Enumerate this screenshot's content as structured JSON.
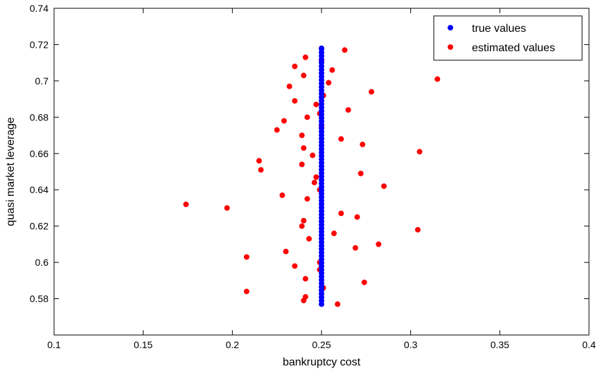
{
  "chart_data": {
    "type": "scatter",
    "xlabel": "bankruptcy cost",
    "ylabel": "quasi market leverage",
    "xlim": [
      0.1,
      0.4
    ],
    "ylim": [
      0.56,
      0.74
    ],
    "xticks": [
      "0.1",
      "0.15",
      "0.2",
      "0.25",
      "0.3",
      "0.35",
      "0.4"
    ],
    "yticks": [
      "0.58",
      "0.6",
      "0.62",
      "0.64",
      "0.66",
      "0.68",
      "0.7",
      "0.72",
      "0.74"
    ],
    "grid": false,
    "legend_position": "top-right",
    "series": [
      {
        "name": "true values",
        "color": "#0000ff",
        "x": [
          0.25,
          0.25,
          0.25,
          0.25,
          0.25,
          0.25,
          0.25,
          0.25,
          0.25,
          0.25,
          0.25,
          0.25,
          0.25,
          0.25,
          0.25,
          0.25,
          0.25,
          0.25,
          0.25,
          0.25,
          0.25,
          0.25,
          0.25,
          0.25,
          0.25,
          0.25,
          0.25,
          0.25,
          0.25,
          0.25,
          0.25,
          0.25,
          0.25,
          0.25,
          0.25,
          0.25,
          0.25,
          0.25,
          0.25,
          0.25,
          0.25,
          0.25,
          0.25,
          0.25,
          0.25,
          0.25,
          0.25,
          0.25,
          0.25,
          0.25,
          0.25,
          0.25,
          0.25,
          0.25,
          0.25,
          0.25,
          0.25,
          0.25,
          0.25,
          0.25,
          0.25,
          0.25,
          0.25,
          0.25,
          0.25,
          0.25,
          0.25,
          0.25,
          0.25,
          0.25,
          0.25,
          0.25,
          0.25,
          0.25,
          0.25,
          0.25
        ],
        "y": [
          0.577,
          0.5789,
          0.5808,
          0.5827,
          0.5846,
          0.5865,
          0.5884,
          0.5903,
          0.5922,
          0.5941,
          0.596,
          0.5979,
          0.5998,
          0.6017,
          0.6036,
          0.6055,
          0.6074,
          0.6093,
          0.6112,
          0.6131,
          0.615,
          0.6169,
          0.6188,
          0.6207,
          0.6226,
          0.6245,
          0.6264,
          0.6283,
          0.6302,
          0.6321,
          0.634,
          0.6359,
          0.6378,
          0.6397,
          0.6416,
          0.6435,
          0.6454,
          0.6473,
          0.6492,
          0.6511,
          0.653,
          0.6549,
          0.6568,
          0.6587,
          0.6606,
          0.6625,
          0.6644,
          0.6663,
          0.6682,
          0.6701,
          0.672,
          0.6739,
          0.6758,
          0.6777,
          0.6796,
          0.6815,
          0.6834,
          0.6853,
          0.6872,
          0.6891,
          0.691,
          0.6929,
          0.6948,
          0.6967,
          0.6986,
          0.7005,
          0.7024,
          0.7043,
          0.7062,
          0.7081,
          0.71,
          0.7119,
          0.7138,
          0.7157,
          0.7176,
          0.718
        ]
      },
      {
        "name": "estimated values",
        "color": "#ff0000",
        "x": [
          0.263,
          0.241,
          0.25,
          0.235,
          0.256,
          0.24,
          0.315,
          0.254,
          0.232,
          0.278,
          0.251,
          0.235,
          0.247,
          0.265,
          0.249,
          0.242,
          0.25,
          0.229,
          0.225,
          0.239,
          0.261,
          0.273,
          0.24,
          0.305,
          0.245,
          0.215,
          0.239,
          0.272,
          0.216,
          0.247,
          0.246,
          0.285,
          0.249,
          0.228,
          0.242,
          0.174,
          0.197,
          0.261,
          0.27,
          0.24,
          0.239,
          0.257,
          0.243,
          0.282,
          0.269,
          0.304,
          0.23,
          0.208,
          0.235,
          0.249,
          0.249,
          0.241,
          0.274,
          0.251,
          0.208,
          0.241,
          0.24,
          0.259
        ],
        "y": [
          0.717,
          0.713,
          0.711,
          0.708,
          0.706,
          0.703,
          0.701,
          0.699,
          0.697,
          0.694,
          0.692,
          0.689,
          0.687,
          0.684,
          0.682,
          0.68,
          0.675,
          0.678,
          0.673,
          0.67,
          0.668,
          0.665,
          0.663,
          0.661,
          0.659,
          0.656,
          0.654,
          0.649,
          0.651,
          0.647,
          0.644,
          0.642,
          0.64,
          0.637,
          0.635,
          0.632,
          0.63,
          0.627,
          0.625,
          0.623,
          0.62,
          0.616,
          0.613,
          0.61,
          0.608,
          0.618,
          0.606,
          0.603,
          0.598,
          0.6,
          0.596,
          0.591,
          0.589,
          0.586,
          0.584,
          0.581,
          0.579,
          0.577
        ]
      }
    ]
  }
}
